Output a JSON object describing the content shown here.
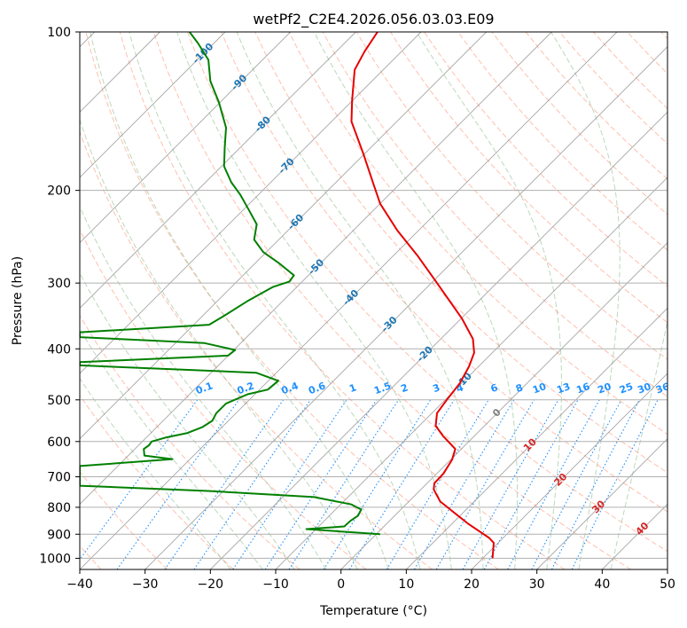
{
  "chart_data": {
    "type": "line",
    "title": "wetPf2_C2E4.2026.056.03.03.E09",
    "xlabel": "Temperature (°C)",
    "ylabel": "Pressure (hPa)",
    "xlim": [
      -40,
      50
    ],
    "ylim": [
      1050,
      100
    ],
    "y_scale": "log",
    "grid": true,
    "x_ticks": [
      -40,
      -30,
      -20,
      -10,
      0,
      10,
      20,
      30,
      40,
      50
    ],
    "y_ticks": [
      100,
      200,
      300,
      400,
      500,
      600,
      700,
      800,
      900,
      1000
    ],
    "colors": {
      "temperature": "#e60000",
      "dewpoint": "#008000",
      "dry_adiabat": "#ff8c69",
      "moist_adiabat": "#8fbc8f",
      "mixing_ratio": "#1e90ff",
      "isotherm": "#888888",
      "isotherm_label_cold": "#1f77b4",
      "isotherm_label_warm": "#d62728",
      "isotherm_label_zero": "#808080"
    },
    "series": [
      {
        "key": "temperature",
        "points": [
          [
            23.2,
            1000
          ],
          [
            23.4,
            935
          ],
          [
            22.7,
            915
          ],
          [
            19.5,
            860
          ],
          [
            17.4,
            820
          ],
          [
            15.2,
            780
          ],
          [
            14.2,
            740
          ],
          [
            14.3,
            720
          ],
          [
            15.7,
            690
          ],
          [
            17.0,
            650
          ],
          [
            17.5,
            620
          ],
          [
            15.6,
            585
          ],
          [
            14.5,
            560
          ],
          [
            14.7,
            530
          ],
          [
            16.2,
            500
          ],
          [
            18.2,
            465
          ],
          [
            19.6,
            432
          ],
          [
            20.4,
            407
          ],
          [
            20.2,
            383
          ],
          [
            18.5,
            350
          ],
          [
            14.7,
            300
          ],
          [
            11.7,
            266
          ],
          [
            8.6,
            238
          ],
          [
            6.0,
            212
          ],
          [
            5.0,
            195
          ],
          [
            3.4,
            170
          ],
          [
            1.6,
            148
          ],
          [
            1.7,
            135
          ],
          [
            2.1,
            118
          ],
          [
            3.6,
            109
          ],
          [
            5.6,
            100
          ]
        ]
      },
      {
        "key": "dewpoint",
        "points": [
          [
            6.0,
            900
          ],
          [
            -5.3,
            880
          ],
          [
            0.5,
            870
          ],
          [
            1.5,
            848
          ],
          [
            2.6,
            830
          ],
          [
            3.1,
            808
          ],
          [
            1.6,
            790
          ],
          [
            -4.1,
            765
          ],
          [
            -20.0,
            745
          ],
          [
            -40.0,
            728
          ],
          [
            -40.0,
            668
          ],
          [
            -25.8,
            648
          ],
          [
            -30.1,
            638
          ],
          [
            -30.2,
            620
          ],
          [
            -29.4,
            610
          ],
          [
            -29.0,
            600
          ],
          [
            -26.9,
            590
          ],
          [
            -23.5,
            578
          ],
          [
            -21.2,
            563
          ],
          [
            -19.7,
            548
          ],
          [
            -19.1,
            530
          ],
          [
            -17.6,
            508
          ],
          [
            -14.3,
            488
          ],
          [
            -11.2,
            478
          ],
          [
            -9.6,
            460
          ],
          [
            -13.0,
            444
          ],
          [
            -40.0,
            430
          ],
          [
            -40.0,
            424
          ],
          [
            -17.3,
            412
          ],
          [
            -16.2,
            402
          ],
          [
            -20.9,
            390
          ],
          [
            -40.0,
            380
          ],
          [
            -40.0,
            372
          ],
          [
            -20.2,
            360
          ],
          [
            -18.2,
            348
          ],
          [
            -14.4,
            325
          ],
          [
            -10.4,
            305
          ],
          [
            -7.9,
            298
          ],
          [
            -7.2,
            290
          ],
          [
            -9.5,
            275
          ],
          [
            -11.9,
            262
          ],
          [
            -13.3,
            248
          ],
          [
            -12.9,
            232
          ],
          [
            -14.1,
            218
          ],
          [
            -15.4,
            204
          ],
          [
            -16.8,
            193
          ],
          [
            -17.9,
            180
          ],
          [
            -17.8,
            166
          ],
          [
            -17.6,
            152
          ],
          [
            -18.7,
            136
          ],
          [
            -20.0,
            124
          ],
          [
            -20.3,
            113
          ],
          [
            -21.9,
            105
          ],
          [
            -23.2,
            100
          ]
        ]
      }
    ],
    "isotherm_labels": {
      "cold": [
        "-100",
        "-90",
        "-80",
        "-70",
        "-60",
        "-50",
        "-40",
        "-30",
        "-20",
        "-10"
      ],
      "zero": "0",
      "warm": [
        "10",
        "20",
        "30",
        "40"
      ]
    },
    "mixing_ratio_labels": [
      "0.1",
      "0.2",
      "0.4",
      "0.6",
      "1",
      "1.5",
      "2",
      "3",
      "4",
      "6",
      "8",
      "10",
      "13",
      "16",
      "20",
      "25",
      "30",
      "36"
    ]
  }
}
